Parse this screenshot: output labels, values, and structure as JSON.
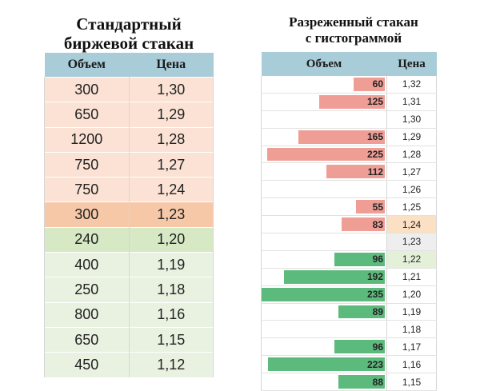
{
  "standard": {
    "title_line1": "Стандартный",
    "title_line2": "биржевой стакан",
    "headers": {
      "volume": "Объем",
      "price": "Цена"
    },
    "rows": [
      {
        "volume": "300",
        "price": "1,30",
        "side": "ask"
      },
      {
        "volume": "650",
        "price": "1,29",
        "side": "ask"
      },
      {
        "volume": "1200",
        "price": "1,28",
        "side": "ask"
      },
      {
        "volume": "750",
        "price": "1,27",
        "side": "ask"
      },
      {
        "volume": "750",
        "price": "1,24",
        "side": "ask"
      },
      {
        "volume": "300",
        "price": "1,23",
        "side": "best-ask"
      },
      {
        "volume": "240",
        "price": "1,20",
        "side": "best-bid"
      },
      {
        "volume": "400",
        "price": "1,19",
        "side": "bid"
      },
      {
        "volume": "250",
        "price": "1,18",
        "side": "bid"
      },
      {
        "volume": "800",
        "price": "1,16",
        "side": "bid"
      },
      {
        "volume": "650",
        "price": "1,15",
        "side": "bid"
      },
      {
        "volume": "450",
        "price": "1,12",
        "side": "bid"
      }
    ]
  },
  "sparse": {
    "title_line1": "Разреженный стакан",
    "title_line2": "с гистограммой",
    "headers": {
      "volume": "Объем",
      "price": "Цена"
    },
    "max_volume": 235,
    "colors": {
      "ask": "#ef9e96",
      "bid": "#5cbb7c"
    },
    "rows": [
      {
        "volume": "60",
        "value": 60,
        "price": "1,32",
        "side": "ask"
      },
      {
        "volume": "125",
        "value": 125,
        "price": "1,31",
        "side": "ask"
      },
      {
        "volume": "",
        "value": 0,
        "price": "1,30",
        "side": "ask"
      },
      {
        "volume": "165",
        "value": 165,
        "price": "1,29",
        "side": "ask"
      },
      {
        "volume": "225",
        "value": 225,
        "price": "1,28",
        "side": "ask"
      },
      {
        "volume": "112",
        "value": 112,
        "price": "1,27",
        "side": "ask"
      },
      {
        "volume": "",
        "value": 0,
        "price": "1,26",
        "side": "ask"
      },
      {
        "volume": "55",
        "value": 55,
        "price": "1,25",
        "side": "ask"
      },
      {
        "volume": "83",
        "value": 83,
        "price": "1,24",
        "side": "ask",
        "highlight": "best-ask"
      },
      {
        "volume": "",
        "value": 0,
        "price": "1,23",
        "side": "none",
        "highlight": "spread"
      },
      {
        "volume": "96",
        "value": 96,
        "price": "1,22",
        "side": "bid",
        "highlight": "best-bid"
      },
      {
        "volume": "192",
        "value": 192,
        "price": "1,21",
        "side": "bid"
      },
      {
        "volume": "235",
        "value": 235,
        "price": "1,20",
        "side": "bid"
      },
      {
        "volume": "89",
        "value": 89,
        "price": "1,19",
        "side": "bid"
      },
      {
        "volume": "",
        "value": 0,
        "price": "1,18",
        "side": "bid"
      },
      {
        "volume": "96",
        "value": 96,
        "price": "1,17",
        "side": "bid"
      },
      {
        "volume": "223",
        "value": 223,
        "price": "1,16",
        "side": "bid"
      },
      {
        "volume": "88",
        "value": 88,
        "price": "1,15",
        "side": "bid"
      }
    ]
  }
}
